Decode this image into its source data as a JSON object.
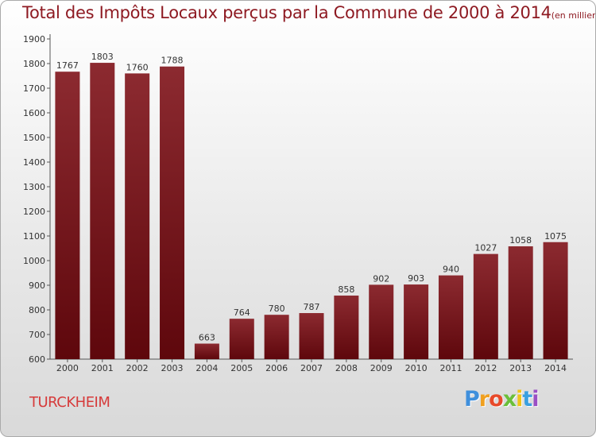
{
  "title": "Total des Impôts Locaux perçus par la Commune de 2000 à 2014",
  "unit": "(en milliers d'€)",
  "commune": "TURCKHEIM",
  "brand": {
    "letters": [
      "P",
      "r",
      "o",
      "x",
      "i",
      "t",
      "i"
    ],
    "colors": [
      "#3f8fdc",
      "#f0a020",
      "#e84a2a",
      "#6bbf3a",
      "#f0c419",
      "#3aa0e0",
      "#9a4fc4"
    ]
  },
  "colors": {
    "bar": "#6e1016",
    "bar_light": "#8c2a30",
    "title": "#8e1a22",
    "commune": "#d63b3b"
  },
  "chart_data": {
    "type": "bar",
    "categories": [
      "2000",
      "2001",
      "2002",
      "2003",
      "2004",
      "2005",
      "2006",
      "2007",
      "2008",
      "2009",
      "2010",
      "2011",
      "2012",
      "2013",
      "2014"
    ],
    "values": [
      1767,
      1803,
      1760,
      1788,
      663,
      764,
      780,
      787,
      858,
      902,
      903,
      940,
      1027,
      1058,
      1075
    ],
    "ylim": [
      600,
      1900
    ],
    "yticks": [
      600,
      700,
      800,
      900,
      1000,
      1100,
      1200,
      1300,
      1400,
      1500,
      1600,
      1700,
      1800,
      1900
    ],
    "grid": false,
    "xlabel": "",
    "ylabel": ""
  }
}
